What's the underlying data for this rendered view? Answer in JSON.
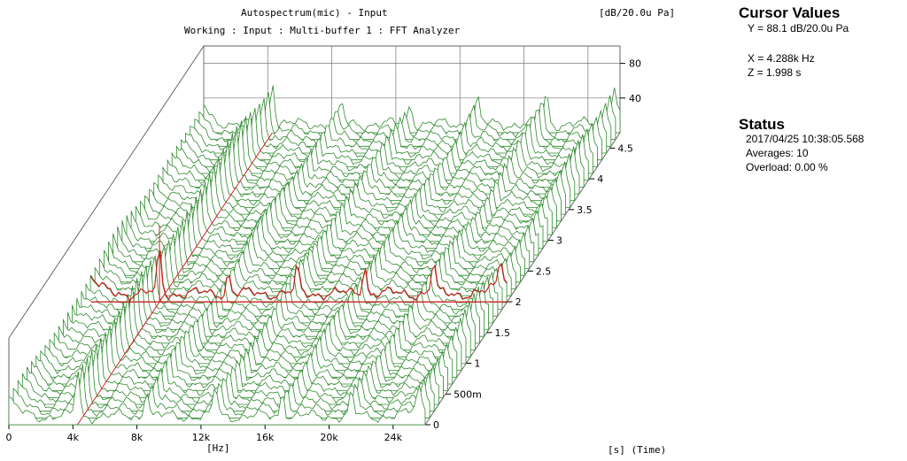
{
  "title": "Autospectrum(mic) - Input",
  "subtitle": "Working : Input : Multi-buffer 1 : FFT Analyzer",
  "units": "[dB/20.0u Pa]",
  "xlabel": "[Hz]",
  "zlabel": "[s] (Time)",
  "cursor": {
    "heading": "Cursor Values",
    "y": "Y = 88.1 dB/20.0u Pa",
    "x": "X = 4.288k Hz",
    "z": "Z = 1.998 s"
  },
  "status": {
    "heading": "Status",
    "datetime": "2017/04/25  10:38:05.568",
    "averages": "Averages: 10",
    "overload": "Overload:   0.00 %"
  },
  "colors": {
    "trace": "#2d8a2d",
    "cursor": "#cc2222",
    "grid": "#777777"
  },
  "chart_data": {
    "type": "waterfall",
    "title": "Autospectrum(mic) - Input",
    "x_ticks": [
      "0",
      "4k",
      "8k",
      "12k",
      "16k",
      "20k",
      "24k"
    ],
    "y_ticks": [
      "40",
      "80"
    ],
    "z_ticks": [
      "0",
      "500m",
      "1",
      "1.5",
      "2",
      "2.5",
      "3",
      "3.5",
      "4",
      "4.5"
    ],
    "x_range": [
      0,
      26000
    ],
    "y_range": [
      0,
      90
    ],
    "z_range": [
      0,
      4.75
    ],
    "peaks_hz": [
      4288,
      8600,
      12900,
      17100,
      21400,
      25600
    ],
    "cursor": {
      "x_hz": 4288,
      "y_db": 88.1,
      "z_s": 1.998
    }
  }
}
